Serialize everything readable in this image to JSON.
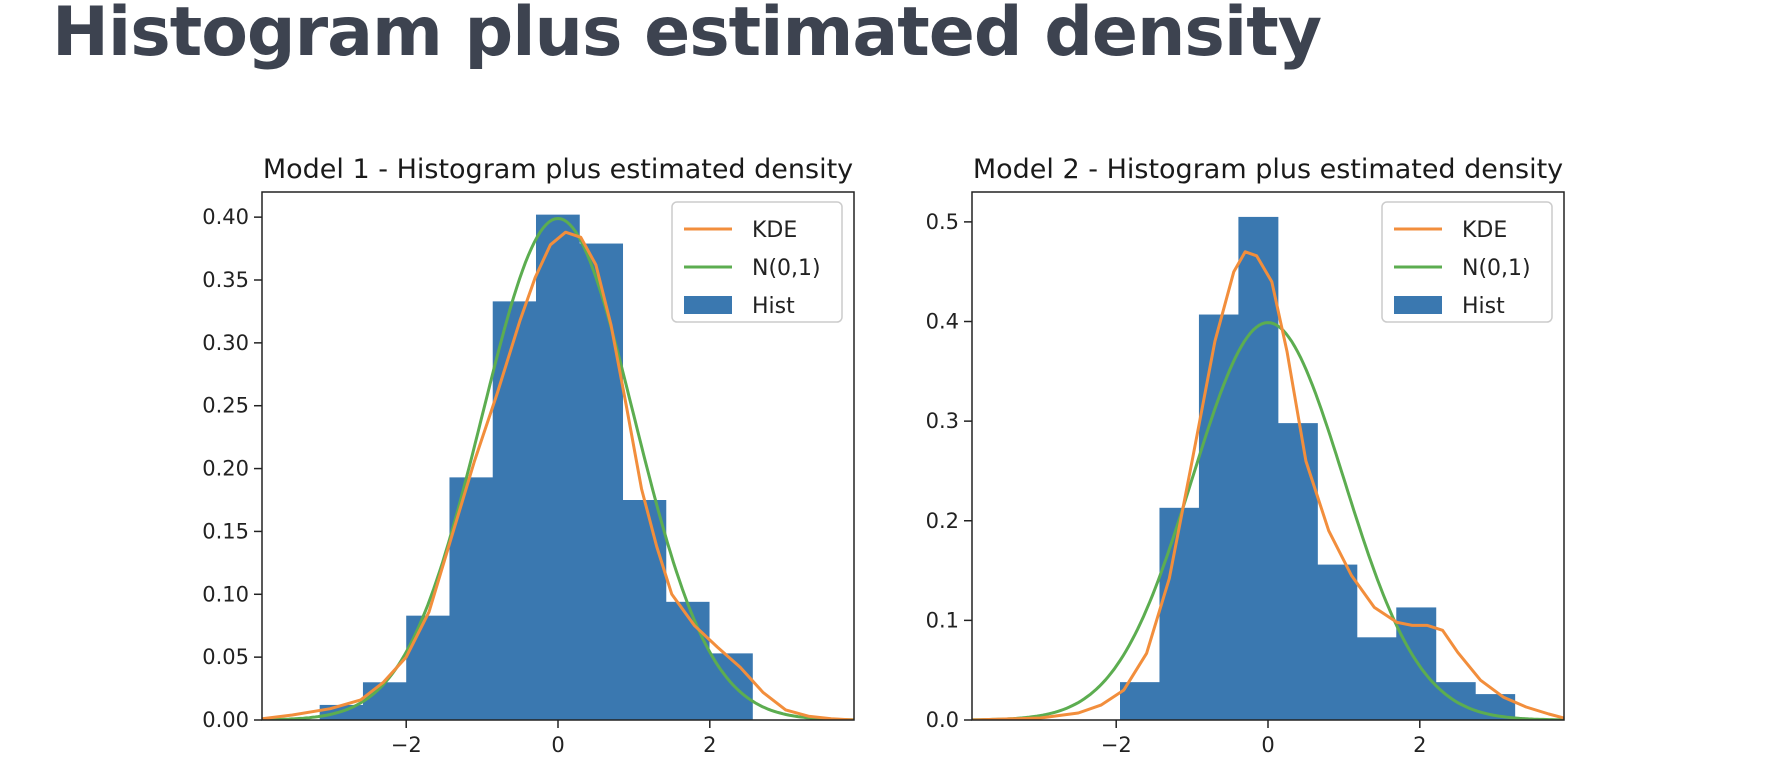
{
  "page": {
    "title": "Histogram plus estimated density"
  },
  "chart_data": [
    {
      "type": "bar",
      "title": "Model 1 - Histogram plus estimated density",
      "xlim": [
        -3.9,
        3.9
      ],
      "ylim": [
        0,
        0.42
      ],
      "xticks": [
        -2,
        0,
        2
      ],
      "xtick_labels": [
        "−2",
        "0",
        "2"
      ],
      "yticks": [
        0,
        0.05,
        0.1,
        0.15,
        0.2,
        0.25,
        0.3,
        0.35,
        0.4
      ],
      "ytick_labels": [
        "0.00",
        "0.05",
        "0.10",
        "0.15",
        "0.20",
        "0.25",
        "0.30",
        "0.35",
        "0.40"
      ],
      "legend": {
        "position": "upper right",
        "entries": [
          "KDE",
          "N(0,1)",
          "Hist"
        ]
      },
      "colors": {
        "hist": "#3a78b0",
        "kde": "#f28e3c",
        "normal": "#5cad50"
      },
      "histogram": {
        "bin_edges": [
          -3.14,
          -2.57,
          -2.0,
          -1.43,
          -0.86,
          -0.29,
          0.28,
          0.85,
          1.42,
          1.99,
          2.56,
          3.13
        ],
        "heights": [
          0.012,
          0.03,
          0.083,
          0.193,
          0.333,
          0.402,
          0.379,
          0.175,
          0.094,
          0.053,
          0.0
        ]
      },
      "kde": {
        "x": [
          -3.9,
          -3.5,
          -3.0,
          -2.6,
          -2.3,
          -2.0,
          -1.7,
          -1.4,
          -1.1,
          -0.8,
          -0.5,
          -0.3,
          -0.1,
          0.1,
          0.3,
          0.5,
          0.7,
          0.9,
          1.1,
          1.3,
          1.5,
          1.8,
          2.1,
          2.4,
          2.7,
          3.0,
          3.3,
          3.6,
          3.9
        ],
        "y": [
          0.001,
          0.004,
          0.009,
          0.016,
          0.03,
          0.05,
          0.086,
          0.146,
          0.206,
          0.26,
          0.318,
          0.352,
          0.378,
          0.388,
          0.384,
          0.362,
          0.314,
          0.25,
          0.184,
          0.138,
          0.1,
          0.075,
          0.058,
          0.042,
          0.022,
          0.008,
          0.003,
          0.001,
          0.0
        ]
      },
      "normal_pdf": {
        "mean": 0,
        "sd": 1
      }
    },
    {
      "type": "bar",
      "title": "Model 2 - Histogram plus estimated density",
      "xlim": [
        -3.9,
        3.9
      ],
      "ylim": [
        0,
        0.53
      ],
      "xticks": [
        -2,
        0,
        2
      ],
      "xtick_labels": [
        "−2",
        "0",
        "2"
      ],
      "yticks": [
        0,
        0.1,
        0.2,
        0.3,
        0.4,
        0.5
      ],
      "ytick_labels": [
        "0.0",
        "0.1",
        "0.2",
        "0.3",
        "0.4",
        "0.5"
      ],
      "legend": {
        "position": "upper right",
        "entries": [
          "KDE",
          "N(0,1)",
          "Hist"
        ]
      },
      "colors": {
        "hist": "#3a78b0",
        "kde": "#f28e3c",
        "normal": "#5cad50"
      },
      "histogram": {
        "bin_edges": [
          -1.95,
          -1.43,
          -0.91,
          -0.39,
          0.13,
          0.65,
          1.17,
          1.69,
          2.21,
          2.73,
          3.25,
          3.77
        ],
        "heights": [
          0.038,
          0.213,
          0.407,
          0.505,
          0.298,
          0.156,
          0.083,
          0.113,
          0.038,
          0.026,
          0.0
        ]
      },
      "kde": {
        "x": [
          -3.9,
          -3.0,
          -2.5,
          -2.2,
          -1.9,
          -1.6,
          -1.3,
          -1.0,
          -0.7,
          -0.45,
          -0.3,
          -0.15,
          0.05,
          0.25,
          0.5,
          0.8,
          1.1,
          1.4,
          1.7,
          1.9,
          2.1,
          2.3,
          2.5,
          2.8,
          3.1,
          3.4,
          3.7,
          3.9
        ],
        "y": [
          0.0,
          0.002,
          0.007,
          0.015,
          0.03,
          0.067,
          0.142,
          0.26,
          0.38,
          0.45,
          0.47,
          0.466,
          0.44,
          0.37,
          0.26,
          0.19,
          0.145,
          0.113,
          0.098,
          0.095,
          0.095,
          0.09,
          0.068,
          0.04,
          0.023,
          0.013,
          0.006,
          0.002
        ]
      },
      "normal_pdf": {
        "mean": 0,
        "sd": 1
      }
    }
  ]
}
